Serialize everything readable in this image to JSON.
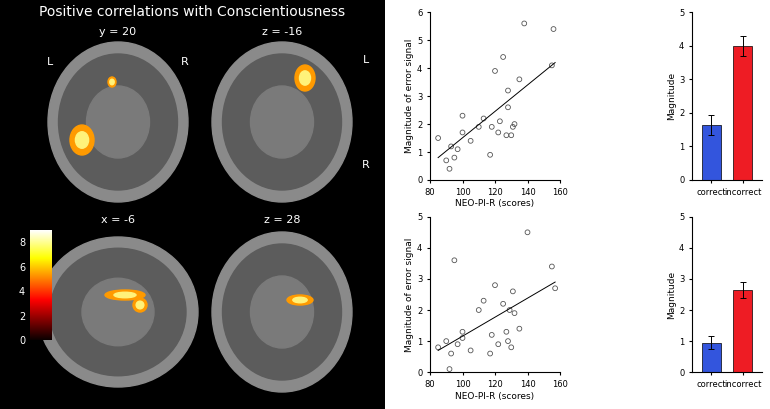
{
  "brain_panel": {
    "title": "Positive correlations with Conscientiousness",
    "slices": [
      {
        "label": "y = 20",
        "side_labels": [
          "L",
          "R"
        ]
      },
      {
        "label": "z = -16",
        "side_labels": [
          "L",
          "R"
        ]
      },
      {
        "label": "x = -6"
      },
      {
        "label": "z = 28"
      }
    ],
    "colorbar": {
      "range": [
        0,
        9
      ],
      "ticks": [
        0,
        2,
        4,
        6,
        8
      ]
    }
  },
  "chart_data": [
    {
      "type": "scatter",
      "xlabel": "NEO-PI-R (scores)",
      "ylabel": "Magnitude of error signal",
      "x": [
        85,
        90,
        92,
        93,
        95,
        97,
        100,
        100,
        105,
        110,
        113,
        117,
        118,
        120,
        122,
        123,
        125,
        127,
        128,
        128,
        130,
        131,
        132,
        135,
        138,
        155,
        156
      ],
      "values": [
        1.5,
        0.7,
        0.4,
        1.2,
        0.8,
        1.1,
        2.3,
        1.7,
        1.4,
        1.9,
        2.2,
        0.9,
        1.9,
        3.9,
        1.7,
        2.1,
        4.4,
        1.6,
        2.6,
        3.2,
        1.6,
        1.9,
        2.0,
        3.6,
        5.6,
        4.1,
        5.4
      ],
      "trend_line": {
        "x": [
          85,
          157
        ],
        "values": [
          0.8,
          4.2
        ]
      },
      "marker": "o",
      "xlim": [
        80,
        160
      ],
      "xticks": [
        80,
        100,
        120,
        140,
        160
      ],
      "ylim": [
        0,
        6
      ],
      "yticks": [
        0,
        1,
        2,
        3,
        4,
        5,
        6
      ]
    },
    {
      "type": "bar",
      "ylabel": "Magnitude",
      "categories": [
        "correct",
        "incorrect"
      ],
      "values": [
        1.65,
        4.0
      ],
      "errors": [
        0.3,
        0.3
      ],
      "colors": [
        "#3355dd",
        "#ee1c24"
      ],
      "ylim": [
        0,
        5
      ],
      "yticks": [
        0,
        1,
        2,
        3,
        4,
        5
      ]
    },
    {
      "type": "scatter",
      "xlabel": "NEO-PI-R (scores)",
      "ylabel": "Magnitude of error signal",
      "x": [
        85,
        90,
        92,
        93,
        95,
        97,
        100,
        100,
        105,
        110,
        113,
        117,
        118,
        120,
        122,
        125,
        127,
        128,
        129,
        130,
        131,
        132,
        135,
        140,
        155,
        157
      ],
      "values": [
        0.8,
        1.0,
        0.1,
        0.6,
        3.6,
        0.9,
        1.3,
        1.1,
        0.7,
        2.0,
        2.3,
        0.6,
        1.2,
        2.8,
        0.9,
        2.2,
        1.3,
        1.0,
        2.0,
        0.8,
        2.6,
        1.9,
        1.4,
        4.5,
        3.4,
        2.7
      ],
      "trend_line": {
        "x": [
          85,
          157
        ],
        "values": [
          0.7,
          2.9
        ]
      },
      "marker": "o",
      "xlim": [
        80,
        160
      ],
      "xticks": [
        80,
        100,
        120,
        140,
        160
      ],
      "ylim": [
        0,
        5
      ],
      "yticks": [
        0,
        1,
        2,
        3,
        4,
        5
      ]
    },
    {
      "type": "bar",
      "ylabel": "Magnitude",
      "categories": [
        "correct",
        "incorrect"
      ],
      "values": [
        0.95,
        2.65
      ],
      "errors": [
        0.22,
        0.25
      ],
      "colors": [
        "#3355dd",
        "#ee1c24"
      ],
      "ylim": [
        0,
        5
      ],
      "yticks": [
        0,
        1,
        2,
        3,
        4,
        5
      ]
    }
  ]
}
